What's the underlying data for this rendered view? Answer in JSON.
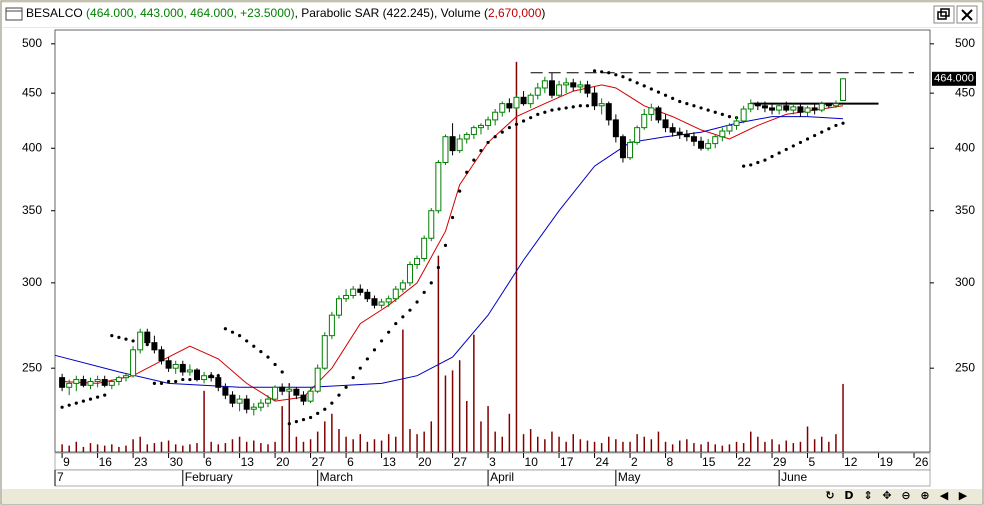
{
  "chart_data": {
    "type": "candlestick",
    "symbol": "BESALCO",
    "quote": "(464.000, 443.000, 464.000, +23.5000)",
    "indicators": ", Parabolic SAR (422.245), Volume (",
    "volume_text": "2,670,000",
    "closing": ")",
    "log_y": true,
    "ylim": [
      209,
      515
    ],
    "yticks": [
      250,
      300,
      350,
      400,
      450,
      500
    ],
    "xlim": [
      -1,
      122.25
    ],
    "xticks": [
      {
        "value": 0,
        "label": "9"
      },
      {
        "value": 5,
        "label": "16"
      },
      {
        "value": 10,
        "label": "23"
      },
      {
        "value": 15,
        "label": "30"
      },
      {
        "value": 20,
        "label": "6"
      },
      {
        "value": 25,
        "label": "13"
      },
      {
        "value": 30,
        "label": "20"
      },
      {
        "value": 35,
        "label": "27"
      },
      {
        "value": 40,
        "label": "6"
      },
      {
        "value": 45,
        "label": "13"
      },
      {
        "value": 50,
        "label": "20"
      },
      {
        "value": 55,
        "label": "27"
      },
      {
        "value": 60,
        "label": "3"
      },
      {
        "value": 65,
        "label": "10"
      },
      {
        "value": 70,
        "label": "17"
      },
      {
        "value": 75,
        "label": "24"
      },
      {
        "value": 80,
        "label": "2"
      },
      {
        "value": 85,
        "label": "8"
      },
      {
        "value": 90,
        "label": "15"
      },
      {
        "value": 95,
        "label": "22"
      },
      {
        "value": 100,
        "label": "29"
      },
      {
        "value": 105,
        "label": "5"
      },
      {
        "value": 110,
        "label": "12"
      },
      {
        "value": 115,
        "label": "19"
      },
      {
        "value": 120,
        "label": "26"
      }
    ],
    "months": [
      {
        "value": -1,
        "label": "7"
      },
      {
        "value": 17,
        "label": "February"
      },
      {
        "value": 36,
        "label": "March"
      },
      {
        "value": 60,
        "label": "April"
      },
      {
        "value": 78,
        "label": "May"
      },
      {
        "value": 101,
        "label": "June"
      }
    ],
    "up_color": "#008000",
    "down_color": "#000000",
    "x": [
      0,
      1,
      2,
      3,
      4,
      5,
      6,
      7,
      8,
      9,
      10,
      11,
      12,
      13,
      14,
      15,
      16,
      17,
      18,
      19,
      20,
      21,
      22,
      23,
      24,
      25,
      26,
      27,
      28,
      29,
      30,
      31,
      32,
      33,
      34,
      35,
      36,
      37,
      38,
      39,
      40,
      41,
      42,
      43,
      44,
      45,
      46,
      47,
      48,
      49,
      50,
      51,
      52,
      53,
      54,
      55,
      56,
      57,
      58,
      59,
      60,
      61,
      62,
      63,
      64,
      65,
      66,
      67,
      68,
      69,
      70,
      71,
      72,
      73,
      74,
      75,
      76,
      77,
      78,
      79,
      80,
      81,
      82,
      83,
      84,
      85,
      86,
      87,
      88,
      89,
      90,
      91,
      92,
      93,
      94,
      95,
      96,
      97,
      98,
      99,
      100,
      101,
      102,
      103,
      104,
      105,
      106,
      107,
      108,
      109,
      110
    ],
    "ohlc": [
      [
        245,
        247,
        238,
        240
      ],
      [
        240,
        244,
        236,
        242
      ],
      [
        242,
        246,
        238,
        244
      ],
      [
        244,
        246,
        240,
        241
      ],
      [
        241,
        245,
        239,
        243
      ],
      [
        243,
        246,
        240,
        244
      ],
      [
        244,
        246,
        240,
        241
      ],
      [
        241,
        244,
        239,
        243
      ],
      [
        243,
        246,
        241,
        245
      ],
      [
        245,
        247,
        243,
        246
      ],
      [
        246,
        262,
        245,
        260
      ],
      [
        260,
        272,
        258,
        270
      ],
      [
        270,
        272,
        262,
        264
      ],
      [
        264,
        268,
        258,
        260
      ],
      [
        260,
        262,
        252,
        254
      ],
      [
        254,
        256,
        248,
        250
      ],
      [
        250,
        254,
        247,
        252
      ],
      [
        252,
        254,
        246,
        248
      ],
      [
        248,
        252,
        246,
        249
      ],
      [
        249,
        250,
        243,
        244
      ],
      [
        244,
        248,
        242,
        246
      ],
      [
        246,
        248,
        243,
        245
      ],
      [
        245,
        247,
        238,
        240
      ],
      [
        240,
        242,
        234,
        236
      ],
      [
        236,
        238,
        230,
        232
      ],
      [
        232,
        236,
        228,
        234
      ],
      [
        234,
        236,
        227,
        229
      ],
      [
        229,
        232,
        226,
        230
      ],
      [
        230,
        234,
        228,
        232
      ],
      [
        232,
        236,
        230,
        234
      ],
      [
        234,
        241,
        233,
        240
      ],
      [
        240,
        242,
        236,
        238
      ],
      [
        238,
        241,
        236,
        239
      ],
      [
        239,
        240,
        234,
        236
      ],
      [
        236,
        238,
        231,
        233
      ],
      [
        233,
        240,
        232,
        238
      ],
      [
        238,
        252,
        237,
        250
      ],
      [
        250,
        270,
        249,
        268
      ],
      [
        268,
        282,
        266,
        280
      ],
      [
        280,
        292,
        278,
        290
      ],
      [
        290,
        296,
        288,
        292
      ],
      [
        292,
        298,
        290,
        296
      ],
      [
        296,
        299,
        292,
        294
      ],
      [
        294,
        296,
        288,
        290
      ],
      [
        290,
        292,
        284,
        286
      ],
      [
        286,
        290,
        284,
        288
      ],
      [
        288,
        292,
        285,
        290
      ],
      [
        290,
        298,
        288,
        296
      ],
      [
        296,
        302,
        294,
        300
      ],
      [
        300,
        314,
        298,
        312
      ],
      [
        312,
        318,
        309,
        316
      ],
      [
        316,
        332,
        314,
        330
      ],
      [
        330,
        352,
        328,
        350
      ],
      [
        350,
        390,
        348,
        388
      ],
      [
        388,
        412,
        386,
        410
      ],
      [
        410,
        422,
        394,
        398
      ],
      [
        398,
        412,
        396,
        408
      ],
      [
        408,
        414,
        404,
        412
      ],
      [
        412,
        420,
        408,
        418
      ],
      [
        418,
        422,
        412,
        420
      ],
      [
        420,
        428,
        416,
        425
      ],
      [
        425,
        435,
        420,
        432
      ],
      [
        432,
        442,
        428,
        440
      ],
      [
        440,
        445,
        432,
        436
      ],
      [
        436,
        448,
        434,
        446
      ],
      [
        446,
        452,
        438,
        440
      ],
      [
        440,
        450,
        436,
        448
      ],
      [
        448,
        460,
        444,
        455
      ],
      [
        455,
        466,
        450,
        462
      ],
      [
        462,
        470,
        445,
        448
      ],
      [
        448,
        462,
        446,
        458
      ],
      [
        458,
        465,
        450,
        460
      ],
      [
        460,
        464,
        452,
        456
      ],
      [
        456,
        462,
        450,
        458
      ],
      [
        458,
        462,
        446,
        450
      ],
      [
        450,
        456,
        434,
        438
      ],
      [
        438,
        445,
        430,
        440
      ],
      [
        440,
        442,
        420,
        425
      ],
      [
        425,
        430,
        405,
        410
      ],
      [
        410,
        412,
        388,
        392
      ],
      [
        392,
        408,
        390,
        405
      ],
      [
        405,
        420,
        403,
        418
      ],
      [
        418,
        435,
        416,
        430
      ],
      [
        430,
        440,
        424,
        436
      ],
      [
        436,
        438,
        422,
        425
      ],
      [
        425,
        430,
        414,
        418
      ],
      [
        418,
        422,
        410,
        414
      ],
      [
        414,
        418,
        408,
        412
      ],
      [
        412,
        416,
        406,
        410
      ],
      [
        410,
        414,
        402,
        406
      ],
      [
        406,
        410,
        398,
        400
      ],
      [
        400,
        408,
        398,
        404
      ],
      [
        404,
        412,
        400,
        410
      ],
      [
        410,
        418,
        406,
        415
      ],
      [
        415,
        422,
        412,
        420
      ],
      [
        420,
        428,
        416,
        424
      ],
      [
        424,
        438,
        422,
        435
      ],
      [
        435,
        444,
        432,
        440
      ],
      [
        440,
        442,
        434,
        438
      ],
      [
        438,
        442,
        432,
        436
      ],
      [
        436,
        440,
        430,
        434
      ],
      [
        434,
        440,
        430,
        438
      ],
      [
        438,
        442,
        432,
        434
      ],
      [
        434,
        440,
        430,
        437
      ],
      [
        437,
        440,
        428,
        432
      ],
      [
        432,
        438,
        428,
        436
      ],
      [
        436,
        440,
        430,
        434
      ],
      [
        434,
        442,
        432,
        440
      ],
      [
        440,
        441,
        436,
        438
      ],
      [
        438,
        443,
        436,
        440
      ],
      [
        443,
        464,
        443,
        464
      ]
    ],
    "volume": {
      "color": "#800000",
      "ylim": [
        0,
        16000000
      ],
      "values": [
        300000,
        250000,
        400000,
        200000,
        350000,
        300000,
        250000,
        300000,
        200000,
        250000,
        500000,
        600000,
        300000,
        350000,
        400000,
        450000,
        300000,
        250000,
        300000,
        350000,
        2400000,
        400000,
        300000,
        350000,
        500000,
        600000,
        400000,
        450000,
        350000,
        300000,
        400000,
        1800000,
        2700000,
        600000,
        400000,
        500000,
        800000,
        1200000,
        1500000,
        900000,
        600000,
        500000,
        700000,
        400000,
        500000,
        450000,
        700000,
        600000,
        4800000,
        900000,
        700000,
        800000,
        1200000,
        7700000,
        3000000,
        3200000,
        3600000,
        2000000,
        4600000,
        1200000,
        1800000,
        800000,
        600000,
        1500000,
        15300000,
        700000,
        900000,
        600000,
        500000,
        800000,
        600000,
        400000,
        700000,
        500000,
        450000,
        400000,
        350000,
        600000,
        500000,
        400000,
        400000,
        700000,
        600000,
        500000,
        800000,
        400000,
        300000,
        450000,
        500000,
        350000,
        300000,
        400000,
        300000,
        250000,
        300000,
        400000,
        350000,
        800000,
        600000,
        400000,
        500000,
        300000,
        450000,
        350000,
        400000,
        1000000,
        500000,
        600000,
        400000,
        700000,
        2670000
      ]
    },
    "sar": {
      "color": "#000000",
      "values": [
        230,
        231,
        232,
        233,
        234,
        235,
        236,
        268,
        267,
        266,
        265,
        264,
        263,
        242,
        242,
        243,
        243,
        244,
        244,
        245,
        245,
        246,
        246,
        272,
        270,
        268,
        265,
        262,
        259,
        256,
        252,
        248,
        222,
        223,
        224,
        225,
        227,
        229,
        232,
        236,
        240,
        245,
        250,
        255,
        260,
        265,
        270,
        275,
        279,
        283,
        288,
        294,
        300,
        310,
        325,
        345,
        365,
        380,
        390,
        398,
        405,
        410,
        414,
        418,
        421,
        424,
        427,
        430,
        432,
        434,
        435,
        436,
        437,
        438,
        438,
        472,
        471,
        470,
        468,
        466,
        463,
        460,
        457,
        454,
        451,
        448,
        445,
        442,
        440,
        438,
        436,
        434,
        432,
        430,
        428,
        427,
        385,
        386,
        388,
        390,
        393,
        396,
        399,
        402,
        405,
        408,
        411,
        414,
        417,
        420,
        422
      ]
    },
    "lines": [
      {
        "color": "#d40000",
        "x": [
          0,
          5,
          10,
          15,
          18,
          22,
          26,
          30,
          34,
          38,
          42,
          46,
          50,
          54,
          56,
          60,
          64,
          68,
          72,
          76,
          78,
          82,
          86,
          90,
          94,
          98,
          102,
          106,
          110
        ],
        "values": [
          243,
          242,
          246,
          256,
          262,
          255,
          242,
          233,
          235,
          250,
          275,
          286,
          300,
          335,
          370,
          405,
          428,
          440,
          452,
          458,
          455,
          438,
          428,
          416,
          408,
          420,
          430,
          434,
          438
        ]
      },
      {
        "color": "#0000c0",
        "x": [
          -1,
          8,
          15,
          25,
          35,
          45,
          50,
          55,
          60,
          65,
          70,
          75,
          80,
          85,
          90,
          95,
          100,
          105,
          110
        ],
        "values": [
          257,
          248,
          242,
          240,
          240,
          242,
          246,
          256,
          280,
          315,
          350,
          385,
          405,
          410,
          414,
          422,
          428,
          428,
          426
        ]
      }
    ],
    "levels": [
      {
        "value": 470,
        "x": [
          66,
          120
        ],
        "dashed": true,
        "color": "#000000"
      },
      {
        "value": 440,
        "x": [
          97,
          115
        ],
        "dashed": false,
        "color": "#000000"
      }
    ],
    "last_price": {
      "value": 464,
      "label": "464.000"
    },
    "toolbar": [
      "↻",
      "D",
      "⇕",
      "✥",
      "⊖",
      "⊕",
      "◀",
      "▶"
    ]
  }
}
